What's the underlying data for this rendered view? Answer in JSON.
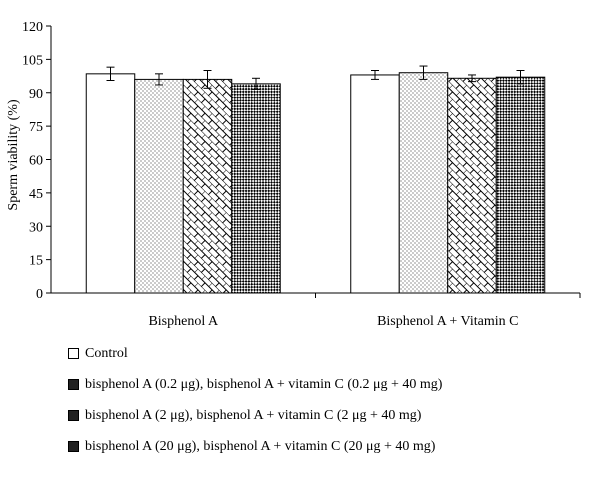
{
  "chart_data": {
    "type": "bar",
    "title": "",
    "xlabel": "",
    "ylabel": "Sperm viability (%)",
    "ylim": [
      0,
      120
    ],
    "yticks": [
      0,
      15,
      30,
      45,
      60,
      75,
      90,
      105,
      120
    ],
    "grid": false,
    "categories": [
      "Bisphenol A",
      "Bisphenol A + Vitamin C"
    ],
    "series": [
      {
        "name": "Control",
        "values": [
          98.5,
          98.0
        ],
        "errors": [
          3.0,
          2.0
        ]
      },
      {
        "name": "bisphenol A (0.2 μg), bisphenol A + vitamin C (0.2 μg + 40 mg)",
        "values": [
          96.0,
          99.0
        ],
        "errors": [
          2.5,
          3.0
        ]
      },
      {
        "name": "bisphenol A (2 μg), bisphenol A + vitamin C (2 μg + 40 mg)",
        "values": [
          96.0,
          96.5
        ],
        "errors": [
          4.0,
          1.5
        ]
      },
      {
        "name": "bisphenol A (20 μg), bisphenol A + vitamin C (20 μg + 40 mg)",
        "values": [
          94.0,
          97.0
        ],
        "errors": [
          2.5,
          3.0
        ]
      }
    ],
    "legend_position": "bottom",
    "styles": {
      "fill_color": "#ffffff",
      "stroke_color": "#000000",
      "patterns": [
        "none",
        "dots",
        "bricks",
        "checker"
      ]
    }
  }
}
